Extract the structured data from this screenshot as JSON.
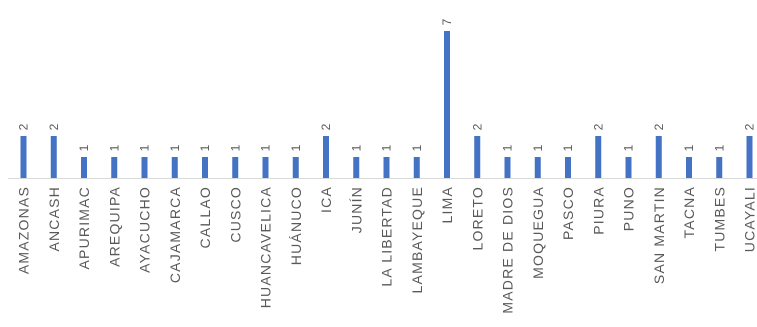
{
  "chart_data": {
    "type": "bar",
    "categories": [
      "AMAZONAS",
      "ANCASH",
      "APURIMAC",
      "AREQUIPA",
      "AYACUCHO",
      "CAJAMARCA",
      "CALLAO",
      "CUSCO",
      "HUANCAVELICA",
      "HUÁNUCO",
      "ICA",
      "JUNÍN",
      "LA LIBERTAD",
      "LAMBAYEQUE",
      "LIMA",
      "LORETO",
      "MADRE DE DIOS",
      "MOQUEGUA",
      "PASCO",
      "PIURA",
      "PUNO",
      "SAN MARTIN",
      "TACNA",
      "TUMBES",
      "UCAYALI"
    ],
    "values": [
      2,
      2,
      1,
      1,
      1,
      1,
      1,
      1,
      1,
      1,
      2,
      1,
      1,
      1,
      7,
      2,
      1,
      1,
      1,
      2,
      1,
      2,
      1,
      1,
      2
    ],
    "data_labels": [
      "2",
      "2",
      "1",
      "1",
      "1",
      "1",
      "1",
      "1",
      "1",
      "1",
      "2",
      "1",
      "1",
      "1",
      "7",
      "2",
      "1",
      "1",
      "1",
      "2",
      "1",
      "2",
      "1",
      "1",
      "2"
    ],
    "ylim": [
      0,
      7
    ],
    "grid": false,
    "legend": "none",
    "bar_color": "#4472C4",
    "axis_color": "#D9D9D9",
    "label_color": "#595959"
  }
}
